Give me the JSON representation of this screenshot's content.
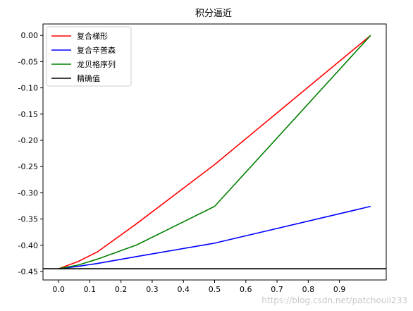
{
  "chart_data": {
    "type": "line",
    "title": "积分逼近",
    "xlabel": "",
    "ylabel": "",
    "xlim": [
      -0.0499,
      1.0499
    ],
    "ylim": [
      -0.4662,
      0.0218
    ],
    "xticks": [
      "0.0",
      "0.1",
      "0.2",
      "0.3",
      "0.4",
      "0.5",
      "0.6",
      "0.7",
      "0.8",
      "0.9"
    ],
    "yticks": [
      "0.00",
      "-0.05",
      "-0.10",
      "-0.15",
      "-0.20",
      "-0.25",
      "-0.30",
      "-0.35",
      "-0.40",
      "-0.45"
    ],
    "legend_position": "top-left",
    "grid": false,
    "series": [
      {
        "name": "复合梯形",
        "color": "#ff0000",
        "x": [
          0.0,
          0.0625,
          0.125,
          0.25,
          0.5,
          1.0
        ],
        "y": [
          -0.4448,
          -0.4311,
          -0.4124,
          -0.3589,
          -0.2462,
          0.0
        ]
      },
      {
        "name": "复合辛普森",
        "color": "#0000ff",
        "x": [
          0.0,
          0.0625,
          0.125,
          0.25,
          0.5,
          1.0
        ],
        "y": [
          -0.4448,
          -0.4402,
          -0.4347,
          -0.4216,
          -0.396,
          -0.3259
        ]
      },
      {
        "name": "龙贝格序列",
        "color": "#008000",
        "x": [
          0.0,
          0.0625,
          0.125,
          0.25,
          0.5,
          1.0
        ],
        "y": [
          -0.4448,
          -0.4378,
          -0.4263,
          -0.3995,
          -0.3259,
          0.0
        ]
      },
      {
        "name": "精确值",
        "color": "#000000",
        "hline": -0.4448
      }
    ]
  },
  "watermark": "https://blog.csdn.net/patchouli233"
}
